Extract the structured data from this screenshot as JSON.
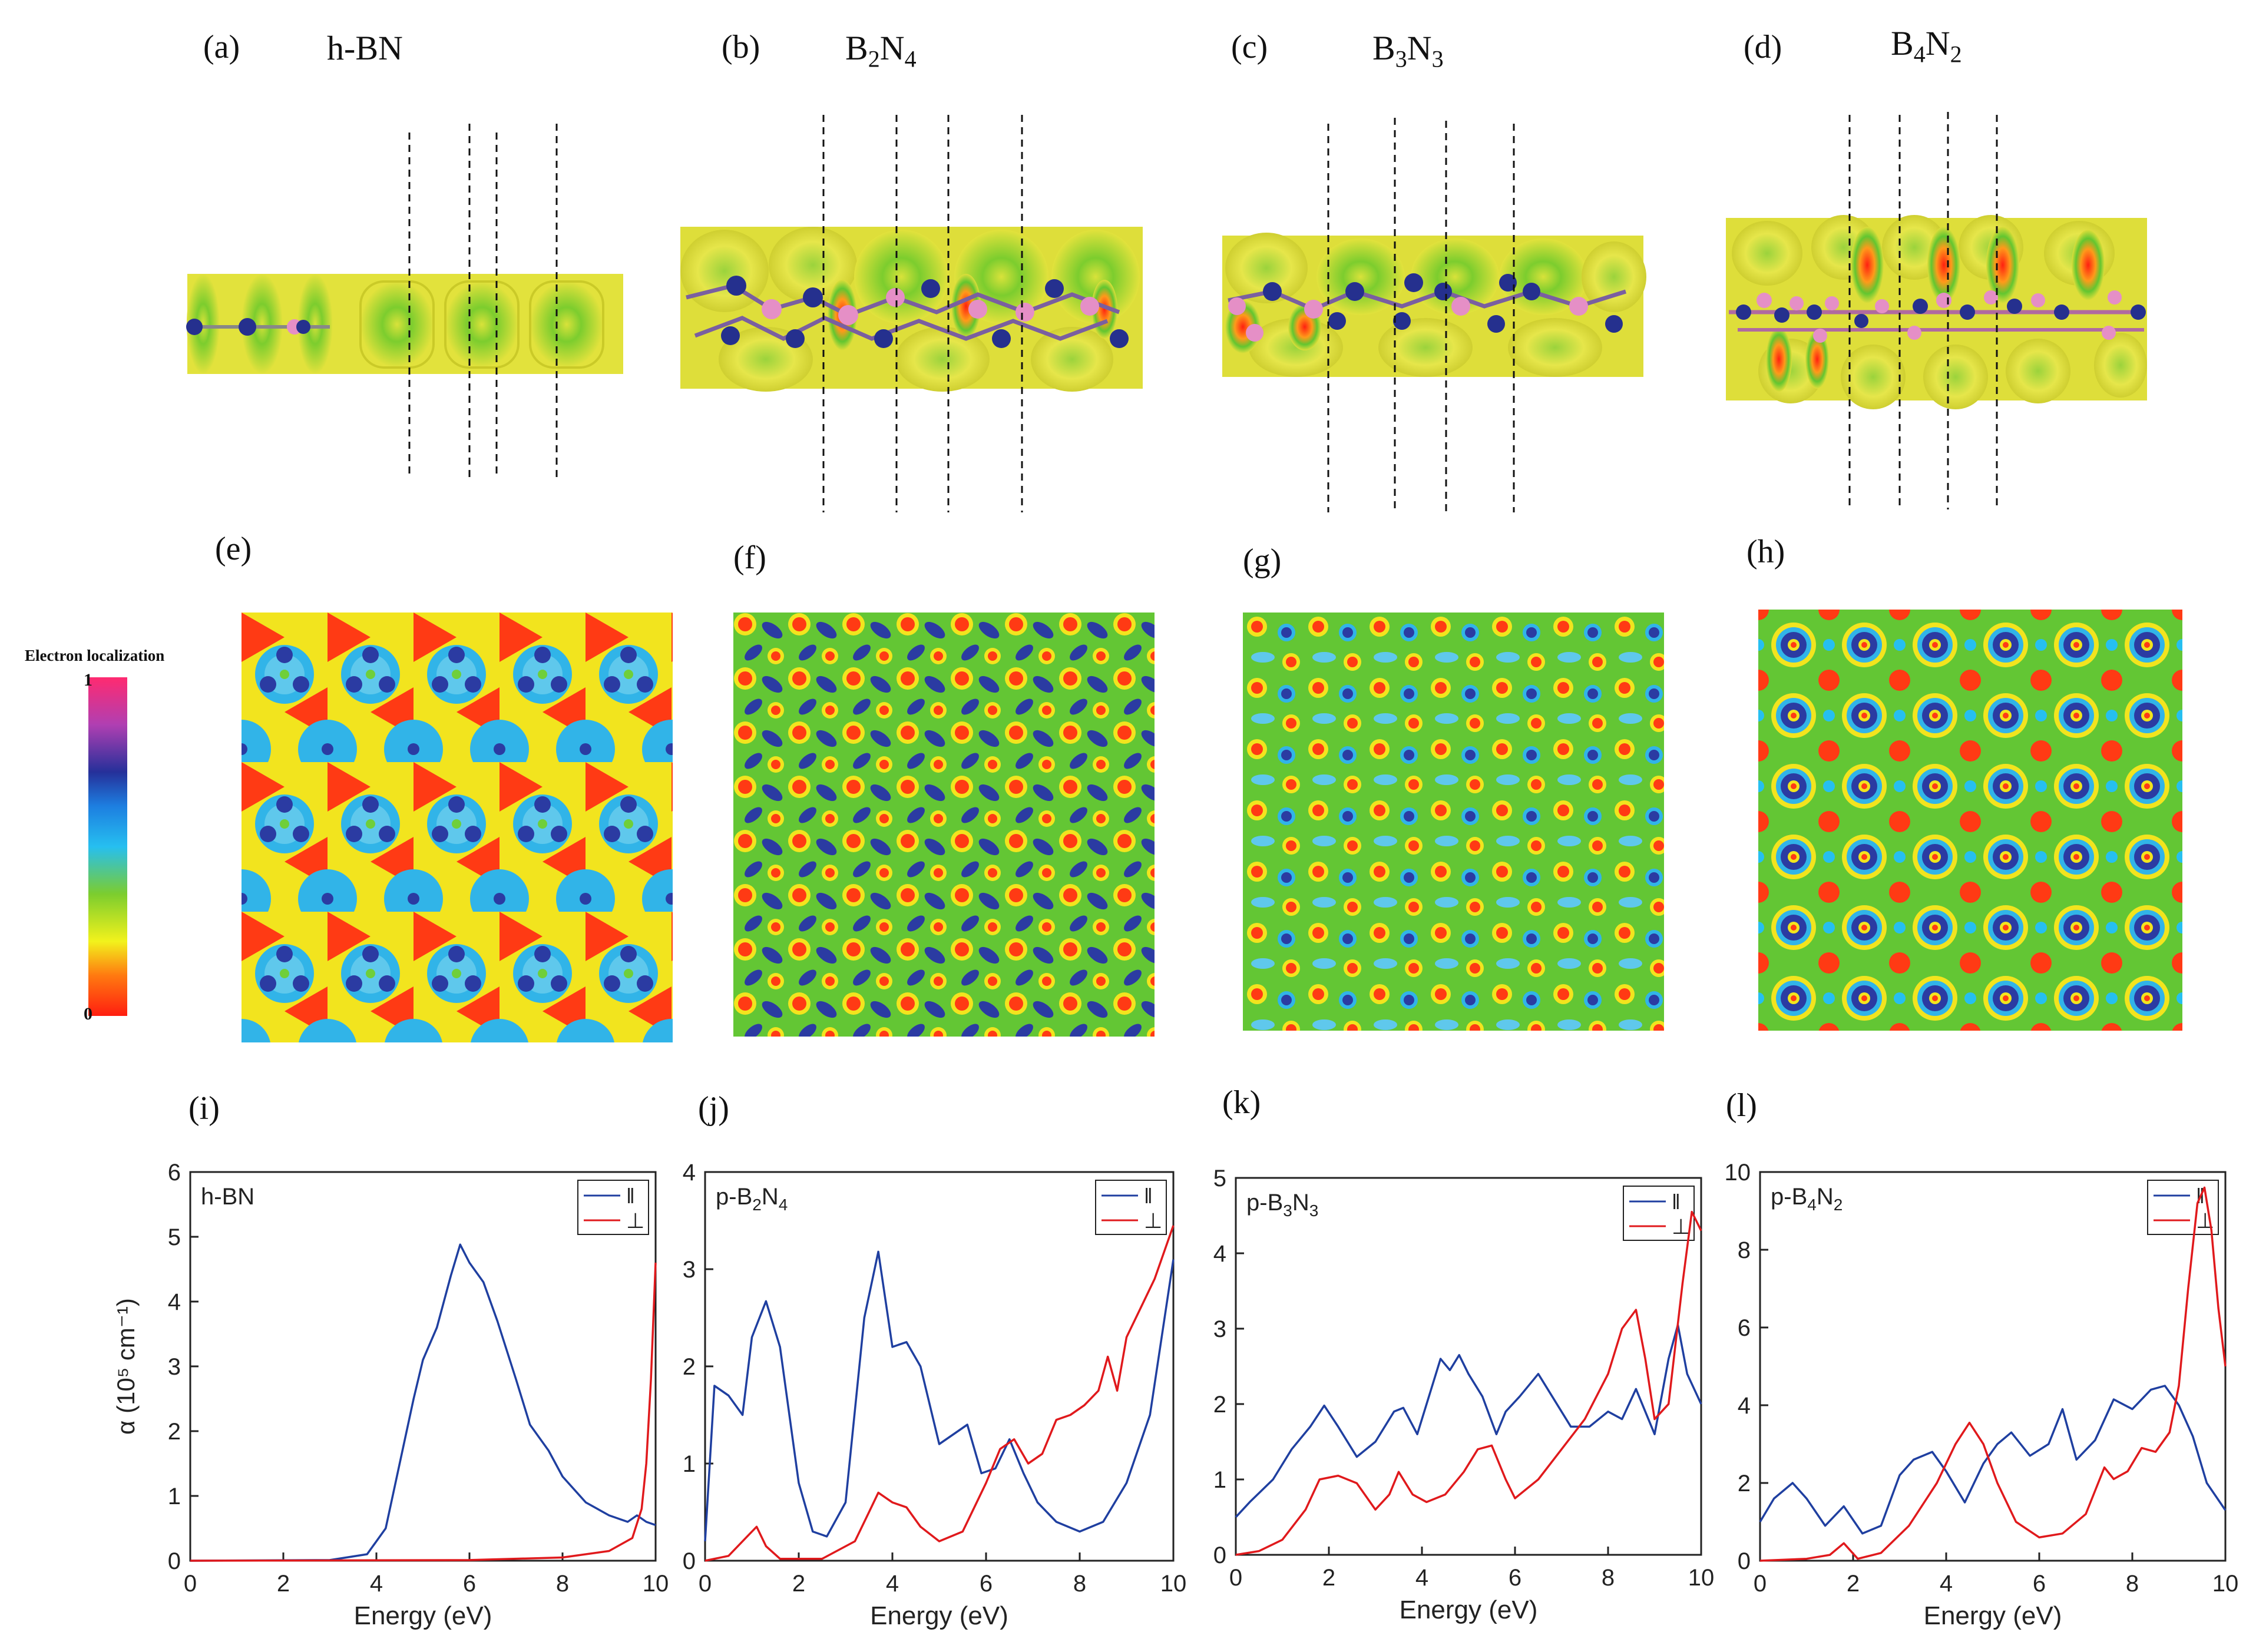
{
  "panel_labels": {
    "a": "(a)",
    "b": "(b)",
    "c": "(c)",
    "d": "(d)",
    "e": "(e)",
    "f": "(f)",
    "g": "(g)",
    "h": "(h)",
    "i": "(i)",
    "j": "(j)",
    "k": "(k)",
    "l": "(l)"
  },
  "structure_titles": {
    "a": "h-BN",
    "b": {
      "el1": "B",
      "sub1": "2",
      "el2": "N",
      "sub2": "4"
    },
    "c": {
      "el1": "B",
      "sub1": "3",
      "el2": "N",
      "sub2": "3"
    },
    "d": {
      "el1": "B",
      "sub1": "4",
      "el2": "N",
      "sub2": "2"
    }
  },
  "colorbar": {
    "title": "Electron localization",
    "max_label": "1",
    "min_label": "0"
  },
  "colors": {
    "parallel": "#1f3fa0",
    "perpendicular": "#e0191c",
    "isosurface": "#dede3a",
    "boron": "#e58fc6",
    "nitrogen": "#25308e"
  },
  "chart_data": [
    {
      "type": "line",
      "panel": "i",
      "inner_label": "h-BN",
      "xlabel": "Energy (eV)",
      "ylabel": "α (10⁵ cm⁻¹)",
      "xlim": [
        0,
        10
      ],
      "ylim": [
        0,
        6
      ],
      "xticks": [
        0,
        2,
        4,
        6,
        8,
        10
      ],
      "yticks": [
        0,
        1,
        2,
        3,
        4,
        5,
        6
      ],
      "legend": [
        "ǁ",
        "⊥"
      ],
      "series": [
        {
          "name": "ǁ",
          "x": [
            0,
            3,
            3.8,
            4.2,
            4.5,
            4.8,
            5.0,
            5.3,
            5.6,
            5.8,
            6.0,
            6.3,
            6.6,
            7.0,
            7.3,
            7.7,
            8.0,
            8.5,
            9.0,
            9.4,
            9.6,
            9.8,
            10
          ],
          "y": [
            0,
            0.01,
            0.1,
            0.5,
            1.5,
            2.5,
            3.1,
            3.6,
            4.4,
            4.88,
            4.6,
            4.3,
            3.7,
            2.8,
            2.1,
            1.7,
            1.3,
            0.9,
            0.7,
            0.6,
            0.7,
            0.6,
            0.55
          ]
        },
        {
          "name": "⊥",
          "x": [
            0,
            6,
            8,
            9,
            9.5,
            9.7,
            9.8,
            9.9,
            10
          ],
          "y": [
            0,
            0.01,
            0.05,
            0.15,
            0.35,
            0.8,
            1.5,
            2.8,
            4.6
          ]
        }
      ]
    },
    {
      "type": "line",
      "panel": "j",
      "inner_label": {
        "el1": "p-B",
        "sub1": "2",
        "el2": "N",
        "sub2": "4"
      },
      "xlabel": "Energy (eV)",
      "ylabel": "",
      "xlim": [
        0,
        10
      ],
      "ylim": [
        0,
        4
      ],
      "xticks": [
        0,
        2,
        4,
        6,
        8,
        10
      ],
      "yticks": [
        0,
        1,
        2,
        3,
        4
      ],
      "legend": [
        "ǁ",
        "⊥"
      ],
      "series": [
        {
          "name": "ǁ",
          "x": [
            0,
            0.2,
            0.5,
            0.8,
            1.0,
            1.3,
            1.6,
            2.0,
            2.3,
            2.6,
            3.0,
            3.4,
            3.7,
            4.0,
            4.3,
            4.6,
            5.0,
            5.3,
            5.6,
            5.9,
            6.2,
            6.5,
            6.8,
            7.1,
            7.5,
            8.0,
            8.5,
            9.0,
            9.5,
            10
          ],
          "y": [
            0.2,
            1.8,
            1.7,
            1.5,
            2.3,
            2.67,
            2.2,
            0.8,
            0.3,
            0.25,
            0.6,
            2.5,
            3.18,
            2.2,
            2.25,
            2.0,
            1.2,
            1.3,
            1.4,
            0.9,
            0.95,
            1.25,
            0.9,
            0.6,
            0.4,
            0.3,
            0.4,
            0.8,
            1.5,
            3.1
          ]
        },
        {
          "name": "⊥",
          "x": [
            0,
            0.5,
            0.9,
            1.1,
            1.3,
            1.6,
            2.5,
            3.2,
            3.5,
            3.7,
            4.0,
            4.3,
            4.6,
            5.0,
            5.5,
            6.0,
            6.3,
            6.6,
            6.9,
            7.2,
            7.5,
            7.8,
            8.1,
            8.4,
            8.6,
            8.8,
            9.0,
            9.3,
            9.6,
            10
          ],
          "y": [
            0,
            0.05,
            0.25,
            0.35,
            0.15,
            0.02,
            0.02,
            0.2,
            0.5,
            0.7,
            0.6,
            0.55,
            0.35,
            0.2,
            0.3,
            0.8,
            1.15,
            1.25,
            1.0,
            1.1,
            1.45,
            1.5,
            1.6,
            1.75,
            2.1,
            1.75,
            2.3,
            2.6,
            2.9,
            3.45
          ]
        }
      ]
    },
    {
      "type": "line",
      "panel": "k",
      "inner_label": {
        "el1": "p-B",
        "sub1": "3",
        "el2": "N",
        "sub2": "3"
      },
      "xlabel": "Energy (eV)",
      "ylabel": "",
      "xlim": [
        0,
        10
      ],
      "ylim": [
        0,
        5
      ],
      "xticks": [
        0,
        2,
        4,
        6,
        8,
        10
      ],
      "yticks": [
        0,
        1,
        2,
        3,
        4,
        5
      ],
      "legend": [
        "ǁ",
        "⊥"
      ],
      "series": [
        {
          "name": "ǁ",
          "x": [
            0,
            0.3,
            0.8,
            1.2,
            1.6,
            1.9,
            2.2,
            2.6,
            3.0,
            3.4,
            3.6,
            3.9,
            4.2,
            4.4,
            4.6,
            4.8,
            5.0,
            5.3,
            5.6,
            5.8,
            6.1,
            6.5,
            6.8,
            7.2,
            7.6,
            8.0,
            8.3,
            8.6,
            8.8,
            9.0,
            9.3,
            9.5,
            9.7,
            10
          ],
          "y": [
            0.5,
            0.7,
            1.0,
            1.4,
            1.7,
            1.98,
            1.7,
            1.3,
            1.5,
            1.9,
            1.95,
            1.6,
            2.2,
            2.6,
            2.45,
            2.65,
            2.4,
            2.1,
            1.6,
            1.9,
            2.1,
            2.4,
            2.1,
            1.7,
            1.7,
            1.9,
            1.8,
            2.2,
            1.9,
            1.6,
            2.6,
            3.05,
            2.4,
            2.0
          ]
        },
        {
          "name": "⊥",
          "x": [
            0,
            0.5,
            1.0,
            1.5,
            1.8,
            2.2,
            2.6,
            3.0,
            3.3,
            3.5,
            3.8,
            4.1,
            4.5,
            4.9,
            5.2,
            5.5,
            5.8,
            6.0,
            6.5,
            7.0,
            7.5,
            8.0,
            8.3,
            8.6,
            8.8,
            9.0,
            9.3,
            9.6,
            9.8,
            10
          ],
          "y": [
            0,
            0.05,
            0.2,
            0.6,
            1.0,
            1.05,
            0.95,
            0.6,
            0.8,
            1.1,
            0.8,
            0.7,
            0.8,
            1.1,
            1.4,
            1.45,
            1.0,
            0.75,
            1.0,
            1.4,
            1.8,
            2.4,
            3.0,
            3.25,
            2.6,
            1.8,
            2.0,
            3.6,
            4.55,
            4.3
          ]
        }
      ]
    },
    {
      "type": "line",
      "panel": "l",
      "inner_label": {
        "el1": "p-B",
        "sub1": "4",
        "el2": "N",
        "sub2": "2"
      },
      "xlabel": "Energy (eV)",
      "ylabel": "",
      "xlim": [
        0,
        10
      ],
      "ylim": [
        0,
        10
      ],
      "xticks": [
        0,
        2,
        4,
        6,
        8,
        10
      ],
      "yticks": [
        0,
        2,
        4,
        6,
        8,
        10
      ],
      "legend": [
        "ǁ",
        "⊥"
      ],
      "series": [
        {
          "name": "ǁ",
          "x": [
            0,
            0.3,
            0.7,
            1.0,
            1.4,
            1.8,
            2.2,
            2.6,
            3.0,
            3.3,
            3.7,
            4.0,
            4.4,
            4.8,
            5.1,
            5.4,
            5.8,
            6.2,
            6.5,
            6.8,
            7.2,
            7.6,
            8.0,
            8.4,
            8.7,
            9.0,
            9.3,
            9.6,
            10
          ],
          "y": [
            1.0,
            1.6,
            2.0,
            1.6,
            0.9,
            1.4,
            0.7,
            0.9,
            2.2,
            2.6,
            2.8,
            2.3,
            1.5,
            2.5,
            3.0,
            3.3,
            2.7,
            3.0,
            3.9,
            2.6,
            3.1,
            4.15,
            3.9,
            4.4,
            4.5,
            4.0,
            3.2,
            2.0,
            1.3
          ]
        },
        {
          "name": "⊥",
          "x": [
            0,
            1.0,
            1.5,
            1.8,
            2.1,
            2.6,
            3.2,
            3.8,
            4.2,
            4.5,
            4.8,
            5.1,
            5.5,
            6.0,
            6.5,
            7.0,
            7.4,
            7.6,
            7.9,
            8.2,
            8.5,
            8.8,
            9.0,
            9.2,
            9.4,
            9.55,
            9.7,
            9.85,
            10
          ],
          "y": [
            0,
            0.05,
            0.15,
            0.45,
            0.05,
            0.2,
            0.9,
            2.0,
            3.0,
            3.55,
            3.0,
            2.0,
            1.0,
            0.6,
            0.7,
            1.2,
            2.4,
            2.1,
            2.3,
            2.9,
            2.8,
            3.3,
            4.5,
            7.0,
            9.2,
            9.6,
            8.5,
            6.5,
            5.0
          ]
        }
      ]
    }
  ]
}
